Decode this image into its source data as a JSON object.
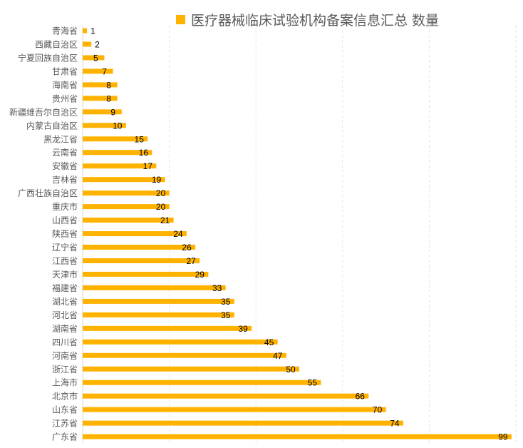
{
  "chart_data": {
    "type": "bar",
    "orientation": "horizontal",
    "title": "",
    "legend": [
      {
        "name": "医疗器械临床试验机构备案信息汇总 数量",
        "color": "#FFB300"
      }
    ],
    "legend_placement": "top",
    "categories": [
      "青海省",
      "西藏自治区",
      "宁夏回族自治区",
      "甘肃省",
      "海南省",
      "贵州省",
      "新疆维吾尔自治区",
      "内蒙古自治区",
      "黑龙江省",
      "云南省",
      "安徽省",
      "吉林省",
      "广西壮族自治区",
      "重庆市",
      "山西省",
      "陕西省",
      "辽宁省",
      "江西省",
      "天津市",
      "福建省",
      "湖北省",
      "河北省",
      "湖南省",
      "四川省",
      "河南省",
      "浙江省",
      "上海市",
      "北京市",
      "山东省",
      "江苏省",
      "广东省"
    ],
    "series": [
      {
        "name": "数量",
        "values": [
          1,
          2,
          5,
          7,
          8,
          8,
          9,
          10,
          15,
          16,
          17,
          19,
          20,
          20,
          21,
          24,
          26,
          27,
          29,
          33,
          35,
          35,
          39,
          45,
          47,
          50,
          55,
          66,
          70,
          74,
          99
        ]
      }
    ],
    "xlim": [
      0,
      100
    ],
    "grid": true,
    "colors": {
      "bar": "#FFB300",
      "grid": "#e6e6e6",
      "axis": "#d9d9d9",
      "label": "#595959",
      "value": "#000000"
    }
  }
}
